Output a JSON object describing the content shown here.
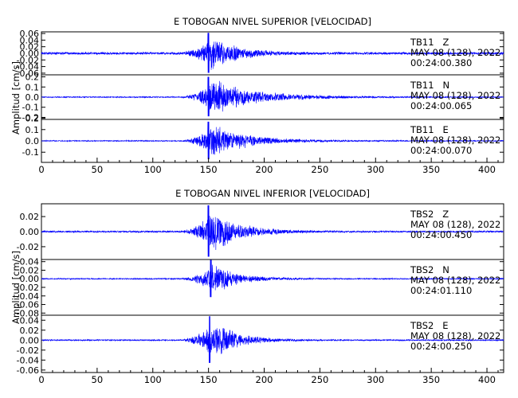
{
  "chart_data": [
    {
      "type": "line",
      "title": "E TOBOGAN NIVEL SUPERIOR [VELOCIDAD]",
      "ylabel": "Amplitud [cm/s]",
      "xlim": [
        0,
        415
      ],
      "x_ticks": [
        "0",
        "50",
        "100",
        "150",
        "200",
        "250",
        "300",
        "350",
        "400"
      ],
      "series": [
        {
          "name": "TB11 Z",
          "component_label": "TB11   Z",
          "date_label": "MAY 08 (128), 2022",
          "time_label": "00:24:00.380",
          "ylim": [
            -0.065,
            0.065
          ],
          "y_ticks": [
            "0.06",
            "0.04",
            "0.02",
            "0.00",
            "-0.02",
            "-0.04",
            "-0.06"
          ],
          "onset": 125,
          "peak_time": 150,
          "peak_amp": 0.062,
          "noise": 0.004,
          "decay": 22,
          "wobble": 1
        },
        {
          "name": "TB11 N",
          "component_label": "TB11   N",
          "date_label": "MAY 08 (128), 2022",
          "time_label": "00:24:00.065",
          "ylim": [
            -0.22,
            0.22
          ],
          "y_ticks": [
            "0.2",
            "0.1",
            "0.0",
            "-0.1",
            "-0.2"
          ],
          "onset": 125,
          "peak_time": 150,
          "peak_amp": 0.2,
          "noise": 0.006,
          "decay": 40,
          "wobble": 2
        },
        {
          "name": "TB11 E",
          "component_label": "TB11   E",
          "date_label": "MAY 08 (128), 2022",
          "time_label": "00:24:00.070",
          "ylim": [
            -0.19,
            0.19
          ],
          "y_ticks": [
            "0.2",
            "0.1",
            "0.0",
            "-0.1"
          ],
          "onset": 125,
          "peak_time": 150,
          "peak_amp": 0.17,
          "noise": 0.005,
          "decay": 32,
          "wobble": 3
        }
      ]
    },
    {
      "type": "line",
      "title": "E TOBOGAN NIVEL INFERIOR [VELOCIDAD]",
      "ylabel": "Amplitud [cm/s]",
      "xlim": [
        0,
        415
      ],
      "x_ticks": [
        "0",
        "50",
        "100",
        "150",
        "200",
        "250",
        "300",
        "350",
        "400"
      ],
      "series": [
        {
          "name": "TBS2 Z",
          "component_label": "TBS2   Z",
          "date_label": "MAY 08 (128), 2022",
          "time_label": "00:24:00.450",
          "ylim": [
            -0.037,
            0.037
          ],
          "y_ticks": [
            "0.02",
            "0.00",
            "-0.02"
          ],
          "onset": 125,
          "peak_time": 150,
          "peak_amp": 0.035,
          "noise": 0.0012,
          "decay": 24,
          "wobble": 4
        },
        {
          "name": "TBS2 N",
          "component_label": "TBS2   N",
          "date_label": "MAY 08 (128), 2022",
          "time_label": "00:24:01.110",
          "ylim": [
            -0.085,
            0.045
          ],
          "y_ticks": [
            "0.04",
            "0.02",
            "0.00",
            "-0.02",
            "-0.04",
            "-0.06",
            "-0.08"
          ],
          "onset": 125,
          "peak_time": 152,
          "peak_amp": 0.045,
          "noise": 0.0015,
          "decay": 20,
          "wobble": 5
        },
        {
          "name": "TBS2 E",
          "component_label": "TBS2   E",
          "date_label": "MAY 08 (128), 2022",
          "time_label": "00:24:00.250",
          "ylim": [
            -0.065,
            0.05
          ],
          "y_ticks": [
            "0.04",
            "0.02",
            "0.00",
            "-0.02",
            "-0.04",
            "-0.06"
          ],
          "onset": 125,
          "peak_time": 151,
          "peak_amp": 0.048,
          "noise": 0.0014,
          "decay": 22,
          "wobble": 6
        }
      ]
    }
  ],
  "colors": {
    "trace": "#0000ff",
    "axis": "#000000",
    "background": "#ffffff"
  }
}
